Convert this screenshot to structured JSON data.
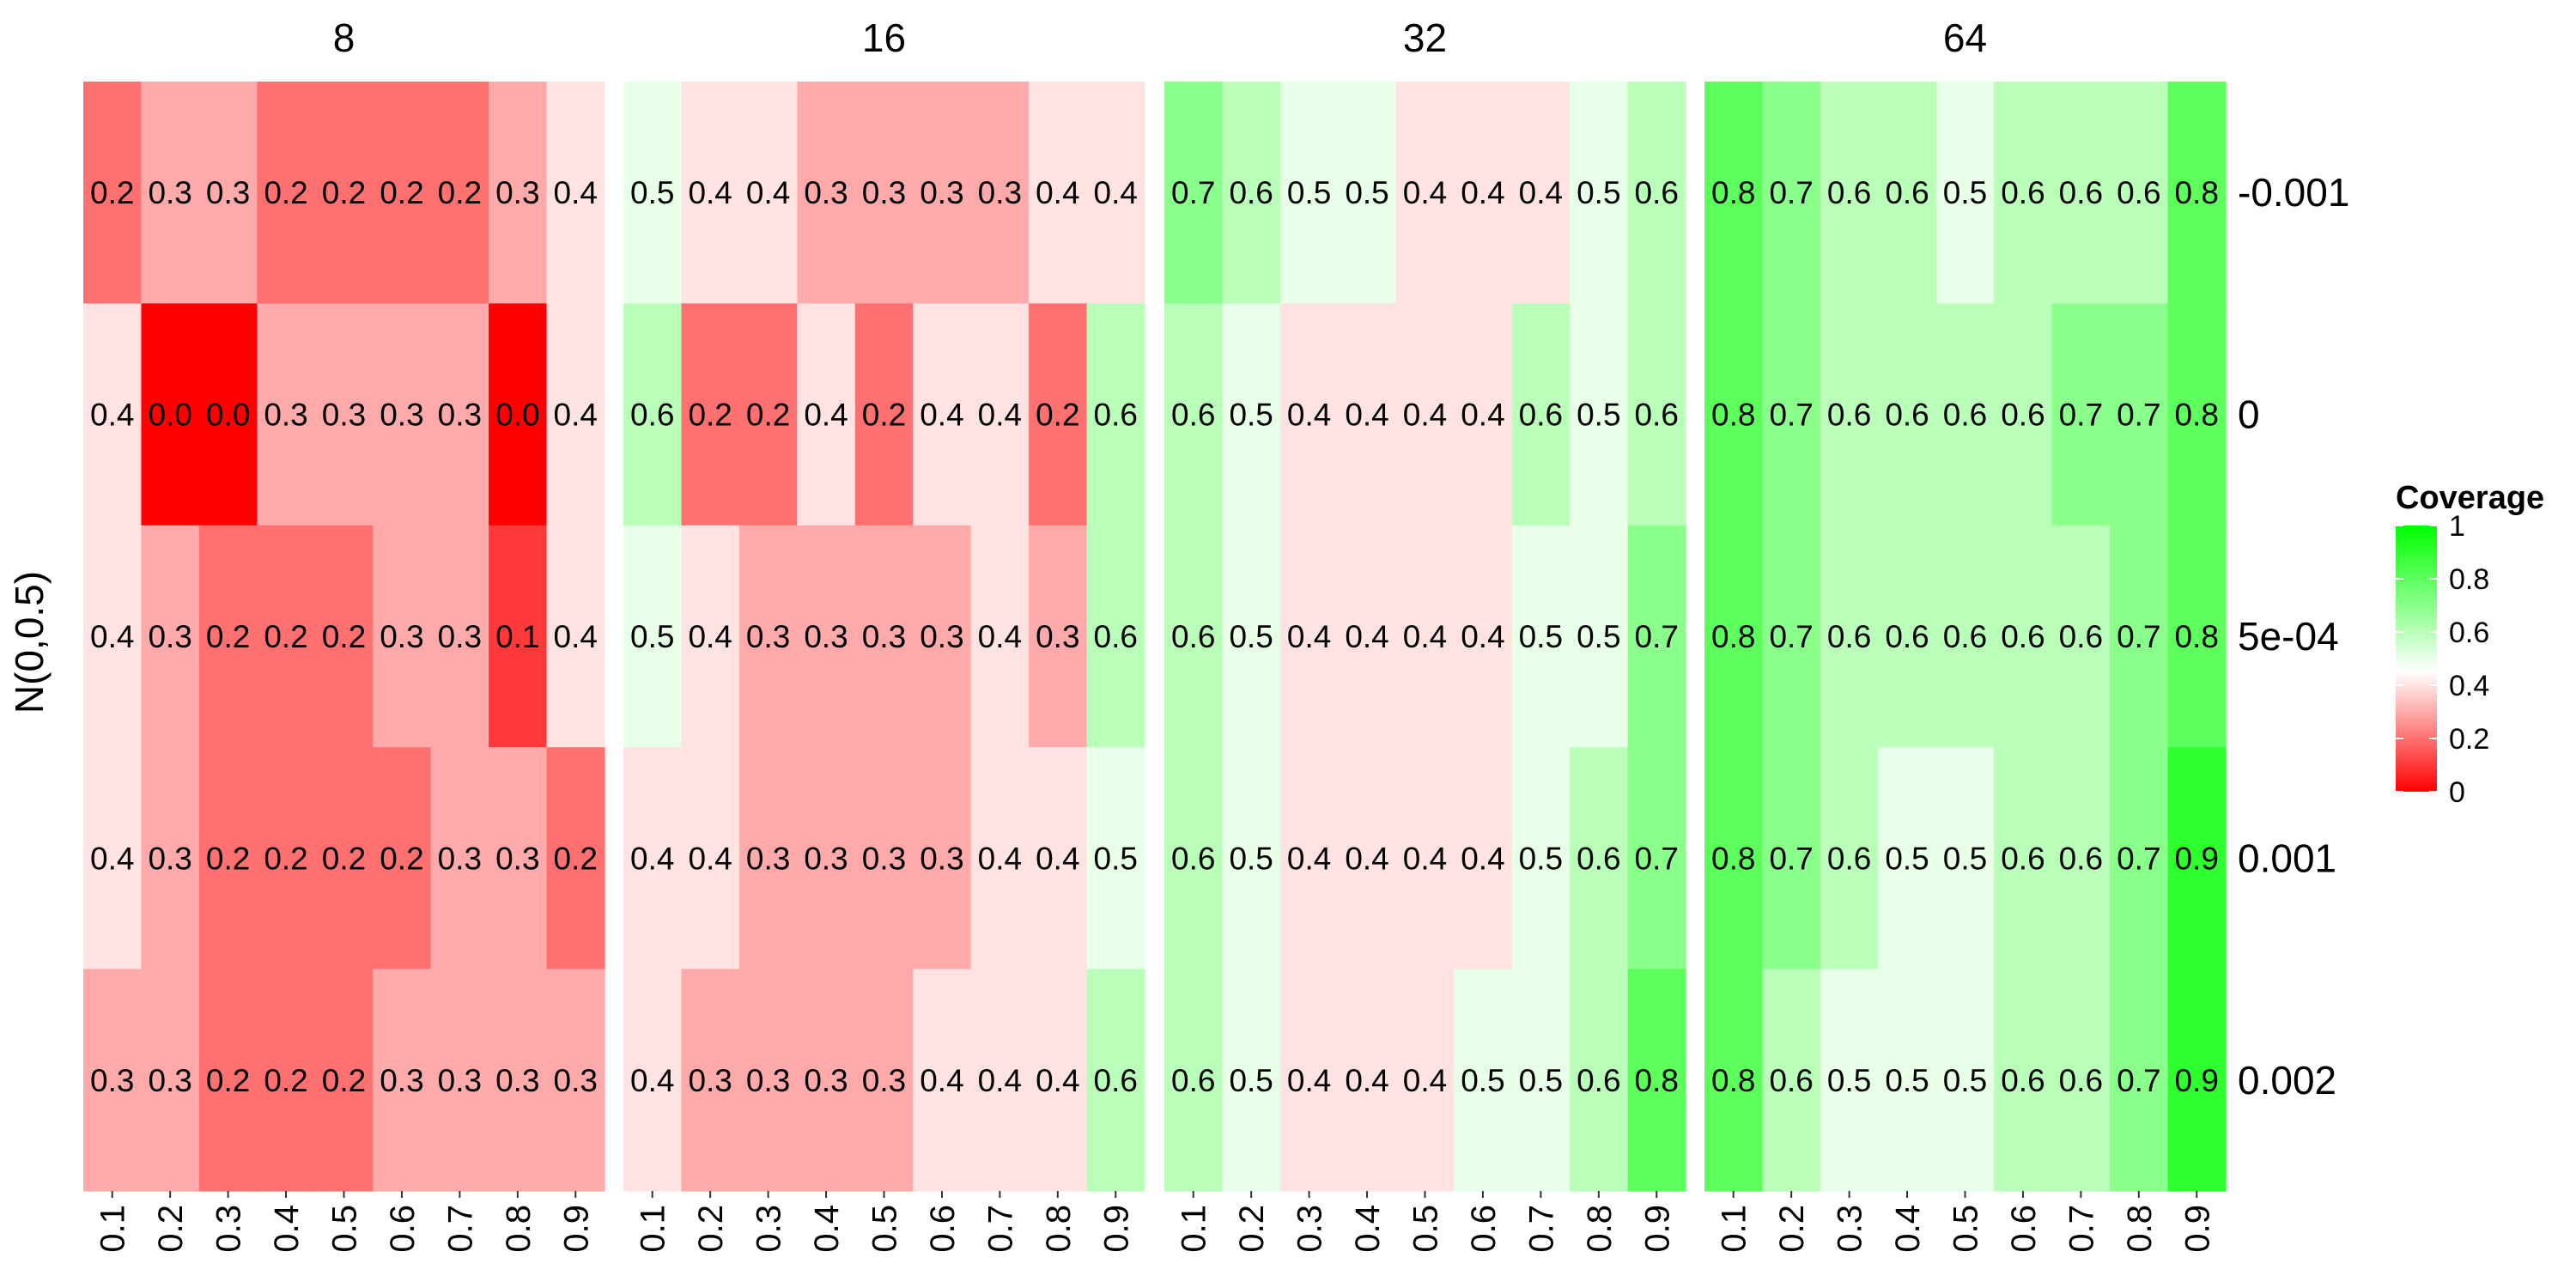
{
  "chart_data": {
    "type": "heatmap",
    "ylabel": "N(0,0.5)",
    "panels": [
      "8",
      "16",
      "32",
      "64"
    ],
    "x_tick_labels": [
      "0.1",
      "0.2",
      "0.3",
      "0.4",
      "0.5",
      "0.6",
      "0.7",
      "0.8",
      "0.9"
    ],
    "row_labels": [
      "-0.001",
      "0",
      "5e-04",
      "0.001",
      "0.002"
    ],
    "values": {
      "8": [
        [
          0.2,
          0.3,
          0.3,
          0.2,
          0.2,
          0.2,
          0.2,
          0.3,
          0.4
        ],
        [
          0.4,
          0.0,
          0.0,
          0.3,
          0.3,
          0.3,
          0.3,
          0.0,
          0.4
        ],
        [
          0.4,
          0.3,
          0.2,
          0.2,
          0.2,
          0.3,
          0.3,
          0.1,
          0.4
        ],
        [
          0.4,
          0.3,
          0.2,
          0.2,
          0.2,
          0.2,
          0.3,
          0.3,
          0.2
        ],
        [
          0.3,
          0.3,
          0.2,
          0.2,
          0.2,
          0.3,
          0.3,
          0.3,
          0.3
        ]
      ],
      "16": [
        [
          0.5,
          0.4,
          0.4,
          0.3,
          0.3,
          0.3,
          0.3,
          0.4,
          0.4
        ],
        [
          0.6,
          0.2,
          0.2,
          0.4,
          0.2,
          0.4,
          0.4,
          0.2,
          0.6
        ],
        [
          0.5,
          0.4,
          0.3,
          0.3,
          0.3,
          0.3,
          0.4,
          0.3,
          0.6
        ],
        [
          0.4,
          0.4,
          0.3,
          0.3,
          0.3,
          0.3,
          0.4,
          0.4,
          0.5
        ],
        [
          0.4,
          0.3,
          0.3,
          0.3,
          0.3,
          0.4,
          0.4,
          0.4,
          0.6
        ]
      ],
      "32": [
        [
          0.7,
          0.6,
          0.5,
          0.5,
          0.4,
          0.4,
          0.4,
          0.5,
          0.6
        ],
        [
          0.6,
          0.5,
          0.4,
          0.4,
          0.4,
          0.4,
          0.6,
          0.5,
          0.6
        ],
        [
          0.6,
          0.5,
          0.4,
          0.4,
          0.4,
          0.4,
          0.5,
          0.5,
          0.7
        ],
        [
          0.6,
          0.5,
          0.4,
          0.4,
          0.4,
          0.4,
          0.5,
          0.6,
          0.7
        ],
        [
          0.6,
          0.5,
          0.4,
          0.4,
          0.4,
          0.5,
          0.5,
          0.6,
          0.8
        ]
      ],
      "64": [
        [
          0.8,
          0.7,
          0.6,
          0.6,
          0.5,
          0.6,
          0.6,
          0.6,
          0.8
        ],
        [
          0.8,
          0.7,
          0.6,
          0.6,
          0.6,
          0.6,
          0.7,
          0.7,
          0.8
        ],
        [
          0.8,
          0.7,
          0.6,
          0.6,
          0.6,
          0.6,
          0.6,
          0.7,
          0.8
        ],
        [
          0.8,
          0.7,
          0.6,
          0.5,
          0.5,
          0.6,
          0.6,
          0.7,
          0.9
        ],
        [
          0.8,
          0.6,
          0.5,
          0.5,
          0.5,
          0.6,
          0.6,
          0.7,
          0.9
        ]
      ]
    },
    "legend": {
      "title": "Coverage",
      "ticks": [
        "0",
        "0.2",
        "0.4",
        "0.6",
        "0.8",
        "1"
      ],
      "tick_values": [
        0,
        0.2,
        0.4,
        0.6,
        0.8,
        1
      ],
      "placement": "right",
      "range": [
        0,
        1
      ]
    },
    "colors": {
      "low": "#ff0000",
      "mid": "#ffffff",
      "high": "#00ff00",
      "midpoint": 0.45
    }
  }
}
